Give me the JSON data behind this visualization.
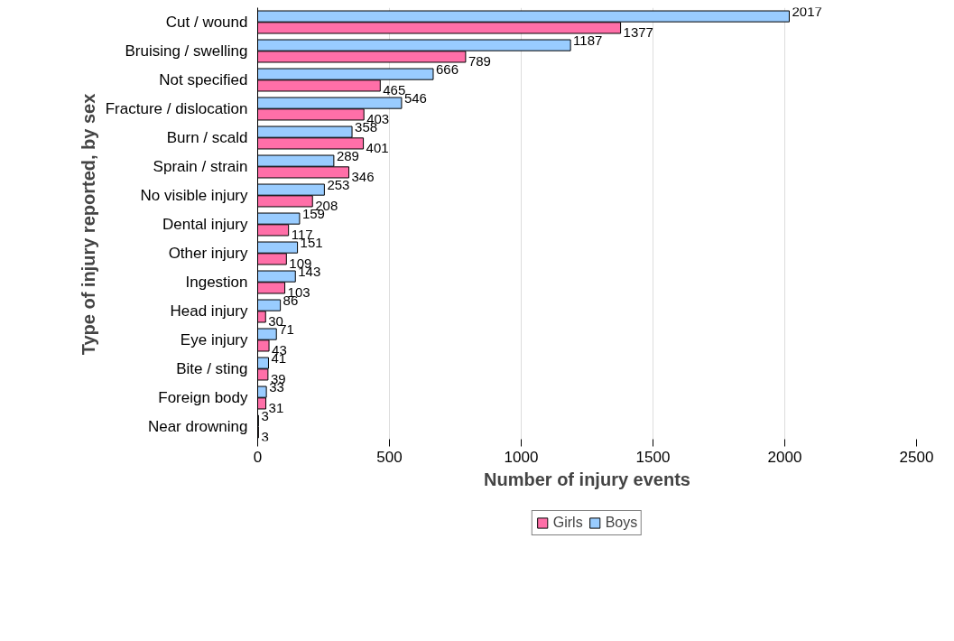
{
  "chart_data": {
    "type": "bar",
    "orientation": "horizontal",
    "xlabel": "Number of injury events",
    "ylabel": "Type of injury reported, by sex",
    "categories": [
      "Cut / wound",
      "Bruising / swelling",
      "Not specified",
      "Fracture / dislocation",
      "Burn / scald",
      "Sprain / strain",
      "No visible injury",
      "Dental injury",
      "Other injury",
      "Ingestion",
      "Head injury",
      "Eye injury",
      "Bite / sting",
      "Foreign body",
      "Near drowning"
    ],
    "series": [
      {
        "name": "Girls",
        "color": "#ff6fa8",
        "values": [
          1377,
          789,
          465,
          403,
          401,
          346,
          208,
          117,
          109,
          103,
          30,
          43,
          39,
          31,
          3
        ]
      },
      {
        "name": "Boys",
        "color": "#99ccff",
        "values": [
          2017,
          1187,
          666,
          546,
          358,
          289,
          253,
          159,
          151,
          143,
          86,
          71,
          41,
          33,
          3
        ]
      }
    ],
    "xlim": [
      0,
      2500
    ],
    "xticks": [
      0,
      500,
      1000,
      1500,
      2000,
      2500
    ],
    "grid": "x",
    "legend": "bottom",
    "data_labels": true
  }
}
